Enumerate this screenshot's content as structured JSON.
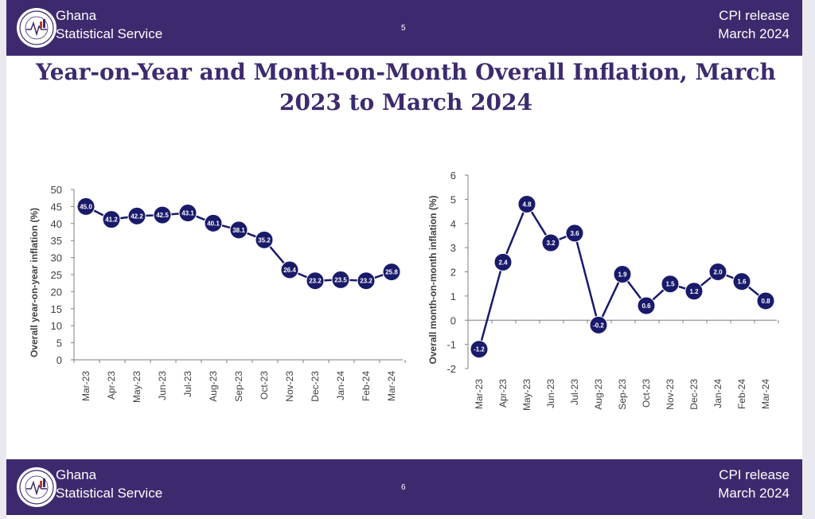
{
  "header": {
    "org_line1": "Ghana",
    "org_line2": "Statistical Service",
    "logo_text": "STATISTICAL SERVICE",
    "logo_sub": "GHANA",
    "release_line1": "CPI release",
    "release_line2": "March  2024",
    "page_number": "5"
  },
  "footer": {
    "org_line1": "Ghana",
    "org_line2": "Statistical Service",
    "logo_text": "STATISTICAL SERVICE",
    "logo_sub": "GHANA",
    "release_line1": "CPI release",
    "release_line2": "March  2024",
    "page_number": "6"
  },
  "page_title": "Year-on-Year and Month-on-Month Overall Inflation, March 2023 to March 2024",
  "colors": {
    "band": "#3d2a6e",
    "series": "#1a1a6b",
    "title": "#3d2a6e"
  },
  "chart_data": [
    {
      "type": "line",
      "title": "",
      "ylabel": "Overall year-on-year inflation (%)",
      "xlabel": "",
      "categories": [
        "Mar-23",
        "Apr-23",
        "May-23",
        "Jun-23",
        "Jul-23",
        "Aug-23",
        "Sep-23",
        "Oct-23",
        "Nov-23",
        "Dec-23",
        "Jan-24",
        "Feb-24",
        "Mar-24"
      ],
      "values": [
        45.0,
        41.2,
        42.2,
        42.5,
        43.1,
        40.1,
        38.1,
        35.2,
        26.4,
        23.2,
        23.5,
        23.2,
        25.8
      ],
      "labels": [
        "45.0",
        "41.2",
        "42.2",
        "42.5",
        "43.1",
        "40.1",
        "38.1",
        "35.2",
        "26.4",
        "23.2",
        "23.5",
        "23.2",
        "25.8"
      ],
      "yticks": [
        "0",
        "5",
        "10",
        "15",
        "20",
        "25",
        "30",
        "35",
        "40",
        "45",
        "50"
      ],
      "ylim": [
        0,
        50
      ],
      "grid": false,
      "legend": "none"
    },
    {
      "type": "line",
      "title": "",
      "ylabel": "Overall month-on-month inflation (%)",
      "xlabel": "",
      "categories": [
        "Mar-23",
        "Apr-23",
        "May-23",
        "Jun-23",
        "Jul-23",
        "Aug-23",
        "Sep-23",
        "Oct-23",
        "Nov-23",
        "Dec-23",
        "Jan-24",
        "Feb-24",
        "Mar-24"
      ],
      "values": [
        -1.2,
        2.4,
        4.8,
        3.2,
        3.6,
        -0.2,
        1.9,
        0.6,
        1.5,
        1.2,
        2.0,
        1.6,
        0.8
      ],
      "labels": [
        "-1.2",
        "2.4",
        "4.8",
        "3.2",
        "3.6",
        "-0.2",
        "1.9",
        "0.6",
        "1.5",
        "1.2",
        "2.0",
        "1.6",
        "0.8"
      ],
      "yticks": [
        "-2",
        "-1",
        "0",
        "1",
        "2",
        "3",
        "4",
        "5",
        "6"
      ],
      "ylim": [
        -2,
        6
      ],
      "grid": false,
      "legend": "none"
    }
  ]
}
